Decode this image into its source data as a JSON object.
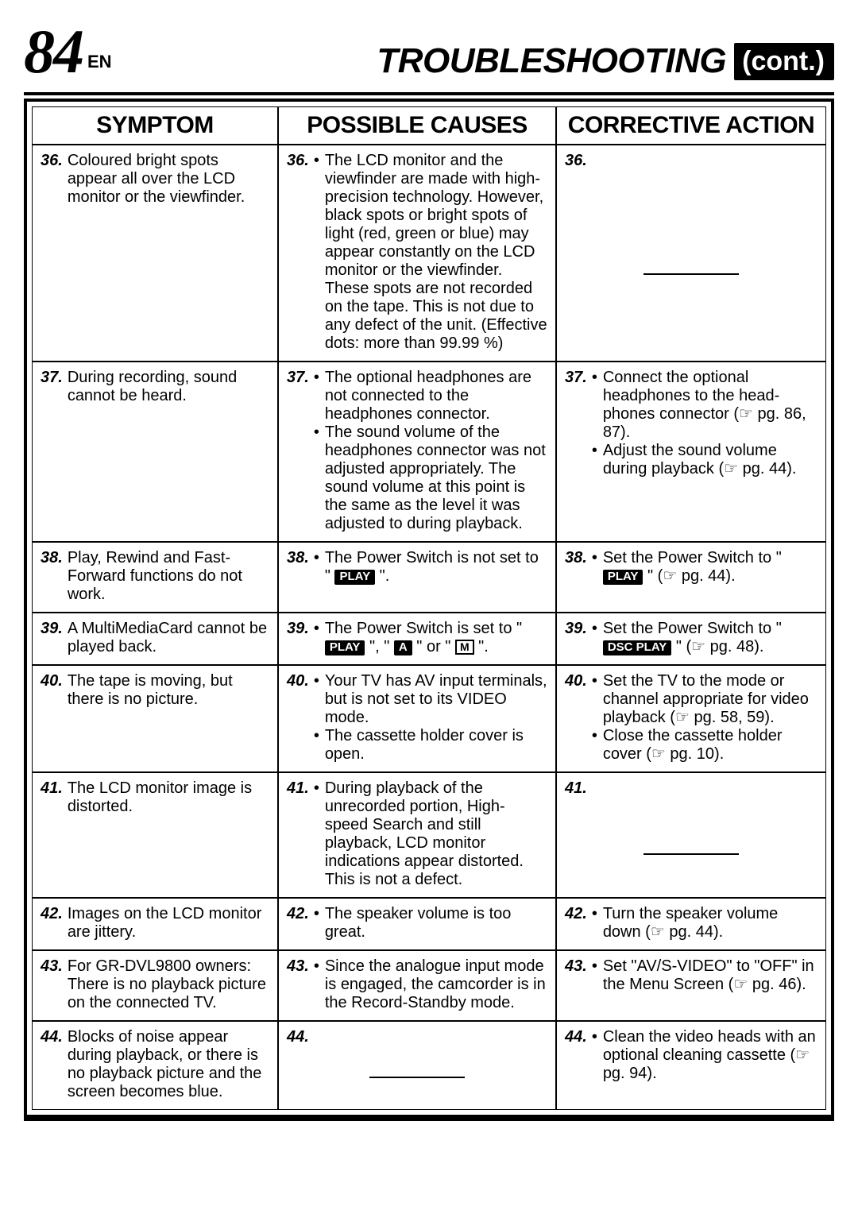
{
  "page_number": "84",
  "lang": "EN",
  "title_main": "TROUBLESHOOTING",
  "title_cont": "(cont.)",
  "headers": {
    "c1": "SYMPTOM",
    "c2": "POSSIBLE CAUSES",
    "c3": "CORRECTIVE ACTION"
  },
  "rows": {
    "r36": {
      "num": "36.",
      "symptom": "Coloured bright spots appear all over the LCD monitor or the viewfinder.",
      "cause_b1": "The LCD monitor and the viewfinder are made with high-precision technology. However, black spots or bright spots of light (red, green or blue) may appear constantly on the LCD monitor or the viewfinder. These spots are not recorded on the tape. This is not due to any defect of the unit. (Effective dots: more than 99.99 %)"
    },
    "r37": {
      "num": "37.",
      "symptom": "During recording, sound cannot be heard.",
      "cause_b1": "The optional headphones are not connected to the headphones connector.",
      "cause_b2": "The sound volume of the headphones connector was not adjusted appropriately. The sound volume at this point is the same as the level it was adjusted to during playback.",
      "action_b1a": "Connect the optional headphones to the head-phones connector (",
      "action_b1b": " pg. 86, 87).",
      "action_b2a": "Adjust the sound volume during playback (",
      "action_b2b": " pg. 44)."
    },
    "r38": {
      "num": "38.",
      "symptom": "Play, Rewind and Fast-Forward functions do not work.",
      "cause_pre": "The Power Switch is not set to \" ",
      "cause_post": " \".",
      "action_pre": "Set the Power Switch to \" ",
      "action_mid": " \" (",
      "action_post": " pg. 44).",
      "play": "PLAY"
    },
    "r39": {
      "num": "39.",
      "symptom": "A MultiMediaCard cannot be played back.",
      "cause_pre": "The Power Switch is set to \" ",
      "cause_mid1": " \", \" ",
      "cause_mid2": " \" or \" ",
      "cause_post": " \".",
      "play": "PLAY",
      "a": "A",
      "m": "M",
      "action_pre": "Set the Power Switch to \" ",
      "action_mid": " \" (",
      "action_post": " pg. 48).",
      "dscplay": "DSC PLAY"
    },
    "r40": {
      "num": "40.",
      "symptom": "The tape is moving, but there is no picture.",
      "cause_b1": "Your TV has AV input terminals, but is not set to its VIDEO mode.",
      "cause_b2": "The cassette holder cover is open.",
      "action_b1a": "Set the TV to the mode or channel appropriate for video playback (",
      "action_b1b": " pg. 58, 59).",
      "action_b2a": "Close the cassette holder cover (",
      "action_b2b": " pg. 10)."
    },
    "r41": {
      "num": "41.",
      "symptom": "The LCD monitor image is distorted.",
      "cause_b1": "During playback of the unrecorded portion, High-speed Search and still playback, LCD monitor indications appear distorted. This is not a defect."
    },
    "r42": {
      "num": "42.",
      "symptom": "Images on the LCD monitor are jittery.",
      "cause_b1": "The speaker volume is too great.",
      "action_b1a": "Turn the speaker volume down (",
      "action_b1b": " pg. 44)."
    },
    "r43": {
      "num": "43.",
      "symptom": "For GR-DVL9800 owners: There is no playback picture on the connected TV.",
      "cause_b1": "Since the analogue input mode is engaged, the camcorder is in the Record-Standby mode.",
      "action_b1a": "Set \"AV/S-VIDEO\" to \"OFF\" in the Menu Screen (",
      "action_b1b": " pg. 46)."
    },
    "r44": {
      "num": "44.",
      "symptom": "Blocks of noise appear during playback, or there is no playback picture and the screen becomes blue.",
      "action_b1a": "Clean the video heads with an optional cleaning cassette (",
      "action_b1b": " pg. 94)."
    }
  }
}
